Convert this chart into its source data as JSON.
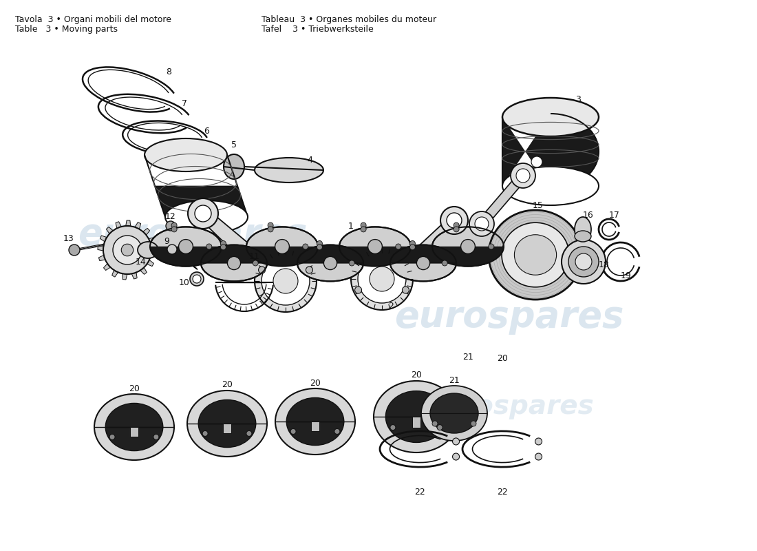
{
  "bg_color": "#ffffff",
  "line_color": "#111111",
  "text_color": "#111111",
  "watermark_color": "#b8cfe0",
  "header": [
    [
      "Tavola  3 • Organi mobili del motore",
      "Tableau  3 • Organes mobiles du moteur"
    ],
    [
      "Table   3 • Moving parts",
      "Tafel    3 • Triebwerksteile"
    ]
  ],
  "figsize": [
    11.0,
    8.0
  ],
  "dpi": 100
}
